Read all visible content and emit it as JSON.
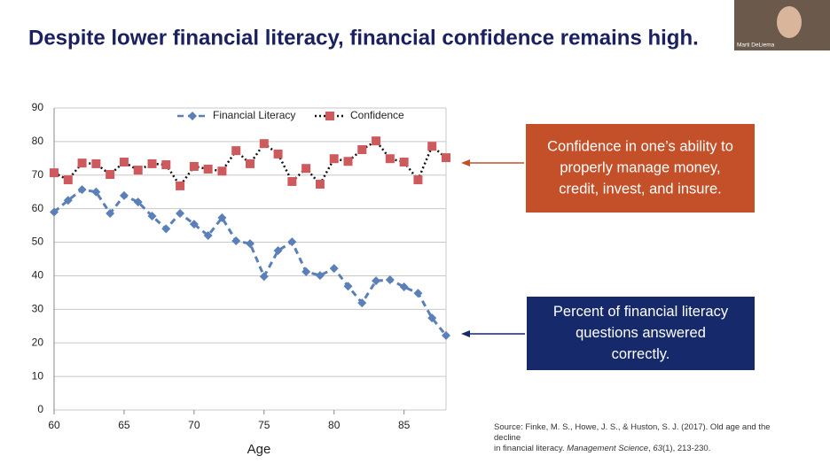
{
  "slide_title": "Despite lower financial literacy, financial confidence remains high.",
  "participant_name": "Marti DeLiema",
  "callouts": [
    {
      "lines": [
        "Confidence in one’s ability to",
        "properly manage money,",
        "credit, invest, and insure."
      ],
      "color": "#c4502a"
    },
    {
      "lines": [
        "Percent of financial literacy",
        "questions answered",
        "correctly."
      ],
      "color": "#16296b"
    }
  ],
  "source": [
    "Source: Finke, M. S., Howe, J. S., & Huston, S. J. (2017). Old age and the decline",
    "in financial literacy. ",
    "Management Science",
    ", ",
    "63",
    "(1), 213-230."
  ],
  "chart_data": {
    "type": "line",
    "x_label": "Age",
    "x": [
      60,
      61,
      62,
      63,
      64,
      65,
      66,
      67,
      68,
      69,
      70,
      71,
      72,
      73,
      74,
      75,
      76,
      77,
      78,
      79,
      80,
      81,
      82,
      83,
      84,
      85,
      86,
      87,
      88
    ],
    "series": [
      {
        "name": "Financial Literacy",
        "color": "#5b7fb8",
        "line_color": "#5b7fb8",
        "line_style": "dashed",
        "marker": "diamond",
        "values": [
          59,
          62.5,
          65.7,
          65,
          58.6,
          63.9,
          62,
          57.8,
          54,
          58.6,
          55.4,
          52,
          57.3,
          50.4,
          49.6,
          39.8,
          47.5,
          50.1,
          41.2,
          40.1,
          42.2,
          36.9,
          31.9,
          38.5,
          38.8,
          36.7,
          34.8,
          27.4,
          22.2
        ]
      },
      {
        "name": "Confidence",
        "color": "#cf5a5e",
        "line_color": "#111111",
        "line_style": "dotted",
        "marker": "square",
        "values": [
          70.7,
          68.6,
          73.6,
          73.4,
          70.2,
          73.9,
          71.5,
          73.4,
          73.1,
          66.8,
          72.6,
          71.8,
          71.2,
          77.3,
          73.4,
          79.4,
          76.3,
          68.1,
          72,
          67.3,
          74.9,
          74.1,
          77.6,
          80.2,
          74.9,
          73.9,
          68.6,
          78.6,
          75.2
        ]
      }
    ],
    "xlim": [
      60,
      88
    ],
    "xticks": [
      60,
      65,
      70,
      75,
      80,
      85
    ],
    "ylim": [
      0,
      90
    ],
    "yticks": [
      0,
      10,
      20,
      30,
      40,
      50,
      60,
      70,
      80,
      90
    ],
    "grid": true,
    "legend": "top"
  }
}
